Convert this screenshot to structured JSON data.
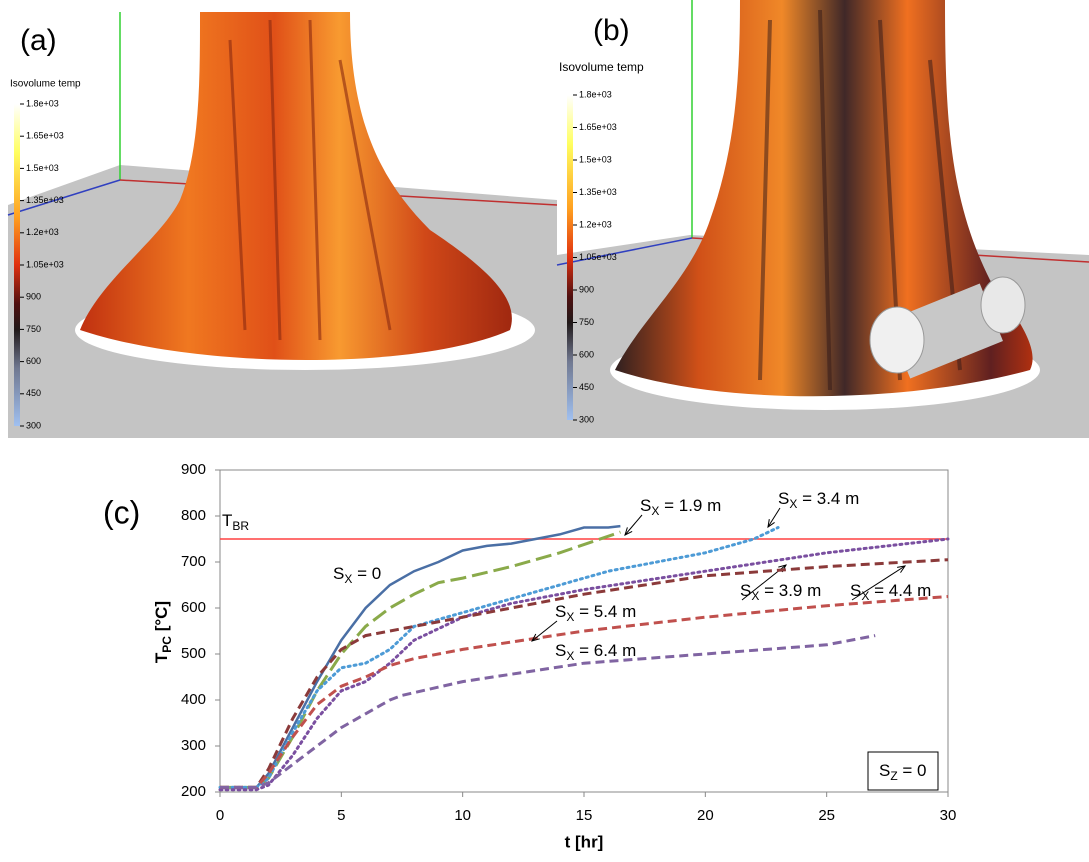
{
  "panels": [
    {
      "label": "(a)",
      "colorbar": {
        "title": "Isovolume temp",
        "ticks": [
          {
            "value": 1800,
            "label": "1.8e+03"
          },
          {
            "value": 1650,
            "label": "1.65e+03"
          },
          {
            "value": 1500,
            "label": "1.5e+03"
          },
          {
            "value": 1350,
            "label": "1.35e+03"
          },
          {
            "value": 1200,
            "label": "1.2e+03"
          },
          {
            "value": 1050,
            "label": "1.05e+03"
          },
          900,
          750,
          600,
          450,
          300
        ]
      }
    },
    {
      "label": "(b)",
      "colorbar": {
        "title": "Isovolume temp",
        "ticks": [
          {
            "value": 1800,
            "label": "1.8e+03"
          },
          {
            "value": 1650,
            "label": "1.65e+03"
          },
          {
            "value": 1500,
            "label": "1.5e+03"
          },
          {
            "value": 1350,
            "label": "1.35e+03"
          },
          {
            "value": 1200,
            "label": "1.2e+03"
          },
          {
            "value": 1050,
            "label": "1.05e+03"
          },
          900,
          750,
          600,
          450,
          300
        ]
      }
    }
  ],
  "chart_data": {
    "type": "line",
    "label": "(c)",
    "x_label": "t [hr]",
    "y_label": [
      "T",
      "PC",
      " [°C]"
    ],
    "xlim": [
      0,
      30
    ],
    "xticks": [
      0,
      5,
      10,
      15,
      20,
      25,
      30
    ],
    "ylim": [
      200,
      900
    ],
    "yticks": [
      200,
      300,
      400,
      500,
      600,
      700,
      800,
      900
    ],
    "threshold": {
      "value": 750,
      "label": [
        "T",
        "BR"
      ],
      "color": "#ff4040"
    },
    "box_label": [
      "S",
      "Z",
      " = 0"
    ],
    "series": [
      {
        "label": [
          "S",
          "X",
          " = 0"
        ],
        "color": "#4a6fa5",
        "line_style": "solid",
        "x": [
          0,
          1.5,
          2,
          3,
          4,
          5,
          6,
          7,
          8,
          9,
          10,
          11,
          12,
          13,
          14,
          15,
          16,
          16.5
        ],
        "values": [
          210,
          210,
          240,
          340,
          440,
          530,
          600,
          650,
          680,
          700,
          725,
          735,
          740,
          750,
          760,
          775,
          775,
          778
        ]
      },
      {
        "label": [
          "S",
          "X",
          " = 1.9 m"
        ],
        "color": "#8aaa4a",
        "line_style": "long-dash",
        "x": [
          0,
          1.5,
          2,
          3,
          4,
          5,
          6,
          7,
          8,
          9,
          10,
          12,
          14,
          16.5
        ],
        "values": [
          210,
          210,
          230,
          320,
          420,
          500,
          560,
          600,
          630,
          655,
          665,
          690,
          720,
          765
        ]
      },
      {
        "label": [
          "S",
          "X",
          " = 3.4 m"
        ],
        "color": "#4d9bd6",
        "line_style": "dotted",
        "x": [
          0,
          1.5,
          2,
          3,
          4,
          5,
          6,
          7,
          8,
          10,
          12,
          14,
          16,
          18,
          20,
          22,
          23
        ],
        "values": [
          210,
          210,
          230,
          330,
          420,
          470,
          480,
          510,
          560,
          590,
          620,
          650,
          680,
          700,
          720,
          750,
          775
        ]
      },
      {
        "label": [
          "S",
          "X",
          " = 3.9 m"
        ],
        "color": "#7a4fa0",
        "line_style": "dotted",
        "x": [
          0,
          1.5,
          2,
          3,
          4,
          5,
          6,
          7,
          8,
          10,
          12,
          15,
          20,
          25,
          30
        ],
        "values": [
          205,
          205,
          215,
          280,
          360,
          420,
          440,
          480,
          530,
          580,
          610,
          640,
          680,
          720,
          750
        ]
      },
      {
        "label": [
          "S",
          "X",
          " = 4.4 m"
        ],
        "color": "#8b3a3a",
        "line_style": "dashed",
        "x": [
          0,
          1.5,
          2,
          3,
          4,
          5,
          6,
          7,
          8,
          10,
          15,
          20,
          25,
          30
        ],
        "values": [
          210,
          210,
          250,
          360,
          450,
          510,
          540,
          550,
          560,
          580,
          630,
          670,
          690,
          705
        ]
      },
      {
        "label": [
          "S",
          "X",
          " = 5.4 m"
        ],
        "color": "#c0504d",
        "line_style": "dashed",
        "x": [
          0,
          1.5,
          2,
          3,
          4,
          5,
          6,
          7,
          8,
          10,
          15,
          20,
          25,
          30
        ],
        "values": [
          210,
          210,
          240,
          320,
          390,
          430,
          450,
          475,
          490,
          510,
          550,
          580,
          605,
          625
        ]
      },
      {
        "label": [
          "S",
          "X",
          " = 6.4 m"
        ],
        "color": "#8064a2",
        "line_style": "dashed",
        "x": [
          0,
          1.5,
          2,
          3,
          4,
          5,
          6,
          7,
          7.5,
          10,
          15,
          20,
          25,
          27
        ],
        "values": [
          210,
          210,
          220,
          260,
          300,
          340,
          370,
          400,
          410,
          440,
          480,
          500,
          520,
          540
        ]
      }
    ]
  }
}
